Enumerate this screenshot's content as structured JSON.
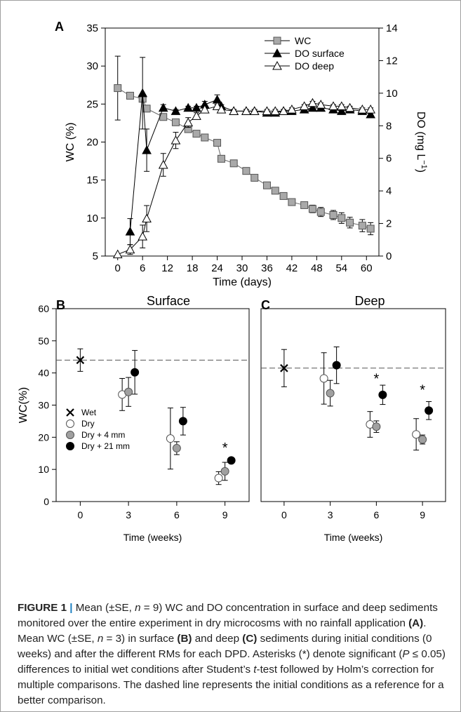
{
  "chart_data": [
    {
      "id": "A",
      "type": "line",
      "panel_label": "A",
      "xlabel": "Time (days)",
      "ylabel": "WC (%)",
      "y2label": "DO (mg L-1)",
      "xlim": [
        -3,
        63
      ],
      "ylim": [
        5,
        35
      ],
      "y2lim": [
        0,
        14
      ],
      "xticks": [
        0,
        6,
        12,
        18,
        24,
        30,
        36,
        42,
        48,
        54,
        60
      ],
      "yticks": [
        5,
        10,
        15,
        20,
        25,
        30,
        35
      ],
      "y2ticks": [
        0,
        2,
        4,
        6,
        8,
        10,
        12,
        14
      ],
      "legend_position": "top-right",
      "series": [
        {
          "name": "WC",
          "axis": "left",
          "marker": "square",
          "color": "#a9a9a9",
          "x": [
            0,
            3,
            6,
            7,
            11,
            14,
            17,
            19,
            21,
            24,
            25,
            28,
            31,
            33,
            36,
            38,
            40,
            42,
            45,
            47,
            49,
            52,
            54,
            56,
            59,
            61
          ],
          "y": [
            27.1,
            26.1,
            25.7,
            24.4,
            23.3,
            22.6,
            21.7,
            21.1,
            20.6,
            19.9,
            17.8,
            17.2,
            16.2,
            15.3,
            14.3,
            13.6,
            12.9,
            12.1,
            11.7,
            11.2,
            10.8,
            10.4,
            10.0,
            9.4,
            9.0,
            8.6
          ],
          "err": [
            4.2,
            0,
            0,
            0,
            0,
            0,
            0,
            0,
            0,
            0,
            0,
            0,
            0,
            0,
            0,
            0,
            0,
            0,
            0.4,
            0.5,
            0.6,
            0.6,
            0.7,
            0.7,
            0.8,
            0.8
          ]
        },
        {
          "name": "DO surface",
          "axis": "right",
          "marker": "triangle-filled",
          "color": "#000000",
          "x": [
            3,
            6,
            7,
            11,
            14,
            17,
            19,
            21,
            24,
            25,
            28,
            31,
            33,
            36,
            38,
            40,
            42,
            45,
            47,
            49,
            52,
            54,
            56,
            59,
            61
          ],
          "y": [
            1.5,
            10.0,
            6.5,
            9.1,
            8.9,
            9.1,
            9.1,
            9.3,
            9.6,
            9.2,
            8.9,
            8.9,
            8.9,
            8.8,
            8.8,
            8.9,
            8.9,
            9.0,
            9.1,
            9.1,
            9.0,
            8.9,
            9.0,
            8.9,
            8.7
          ],
          "err": [
            0.8,
            2.2,
            1.3,
            0.2,
            0.1,
            0.1,
            0.1,
            0.2,
            0.3,
            0.1,
            0.1,
            0.1,
            0.1,
            0.1,
            0.1,
            0.1,
            0.1,
            0.1,
            0.1,
            0.1,
            0.1,
            0.1,
            0.1,
            0.1,
            0.2
          ]
        },
        {
          "name": "DO deep",
          "axis": "right",
          "marker": "triangle-open",
          "color": "#ffffff",
          "x": [
            0,
            3,
            6,
            7,
            11,
            14,
            17,
            19,
            21,
            24,
            25,
            28,
            31,
            33,
            36,
            38,
            40,
            42,
            45,
            47,
            49,
            52,
            54,
            56,
            59,
            61
          ],
          "y": [
            0.1,
            0.4,
            1.2,
            2.3,
            5.6,
            7.1,
            8.2,
            8.6,
            9.0,
            9.2,
            9.0,
            8.9,
            8.9,
            8.9,
            8.9,
            8.9,
            8.9,
            9.0,
            9.2,
            9.4,
            9.3,
            9.2,
            9.2,
            9.1,
            9.0,
            9.0
          ],
          "err": [
            0,
            0.3,
            0.7,
            0.8,
            0.7,
            0.5,
            0.3,
            0.2,
            0.2,
            0.1,
            0.1,
            0.1,
            0.1,
            0.1,
            0.1,
            0.1,
            0.1,
            0.1,
            0.1,
            0.1,
            0.1,
            0.1,
            0.1,
            0.1,
            0.1,
            0.1
          ]
        }
      ]
    },
    {
      "id": "B",
      "type": "scatter",
      "panel_label": "B",
      "title": "Surface",
      "xlabel": "Time (weeks)",
      "ylabel": "WC(%)",
      "categories": [
        "0",
        "3",
        "6",
        "9"
      ],
      "ylim": [
        0,
        60
      ],
      "yticks": [
        0,
        10,
        20,
        30,
        40,
        50,
        60
      ],
      "reference_line": 44,
      "legend_position": "bottom-left",
      "legend": [
        "Wet",
        "Dry",
        "Dry + 4 mm",
        "Dry + 21 mm"
      ],
      "series": [
        {
          "name": "Wet",
          "marker": "x",
          "points": [
            {
              "cat": 0,
              "offset": 0,
              "y": 44.0,
              "err": 3.5
            }
          ]
        },
        {
          "name": "Dry",
          "marker": "circle-open",
          "points": [
            {
              "cat": 1,
              "offset": -1,
              "y": 33.3,
              "err": 5.0
            },
            {
              "cat": 2,
              "offset": -1,
              "y": 19.6,
              "err": 9.5
            },
            {
              "cat": 3,
              "offset": -1,
              "y": 7.3,
              "err": 2.0
            }
          ]
        },
        {
          "name": "Dry + 4 mm",
          "marker": "circle-gray",
          "points": [
            {
              "cat": 1,
              "offset": 0,
              "y": 34.1,
              "err": 4.5
            },
            {
              "cat": 2,
              "offset": 0,
              "y": 16.6,
              "err": 2.0
            },
            {
              "cat": 3,
              "offset": 0,
              "y": 9.4,
              "err": 2.8
            }
          ]
        },
        {
          "name": "Dry + 21 mm",
          "marker": "circle-black",
          "points": [
            {
              "cat": 1,
              "offset": 1,
              "y": 40.2,
              "err": 6.8
            },
            {
              "cat": 2,
              "offset": 1,
              "y": 25.0,
              "err": 4.3
            },
            {
              "cat": 3,
              "offset": 1,
              "y": 12.8,
              "err": 0.6
            }
          ]
        }
      ],
      "annotations": [
        {
          "text": "*",
          "cat": 3,
          "offset": 0,
          "y": 17.0
        }
      ]
    },
    {
      "id": "C",
      "type": "scatter",
      "panel_label": "C",
      "title": "Deep",
      "xlabel": "Time (weeks)",
      "categories": [
        "0",
        "3",
        "6",
        "9"
      ],
      "ylim": [
        0,
        60
      ],
      "reference_line": 41.5,
      "series": [
        {
          "name": "Wet",
          "marker": "x",
          "points": [
            {
              "cat": 0,
              "offset": 0,
              "y": 41.5,
              "err": 5.8
            }
          ]
        },
        {
          "name": "Dry",
          "marker": "circle-open",
          "points": [
            {
              "cat": 1,
              "offset": -1,
              "y": 38.3,
              "err": 8.0
            },
            {
              "cat": 2,
              "offset": -1,
              "y": 24.0,
              "err": 4.0
            },
            {
              "cat": 3,
              "offset": -1,
              "y": 20.9,
              "err": 4.9
            }
          ]
        },
        {
          "name": "Dry + 4 mm",
          "marker": "circle-gray",
          "points": [
            {
              "cat": 1,
              "offset": 0,
              "y": 33.7,
              "err": 4.0
            },
            {
              "cat": 2,
              "offset": 0,
              "y": 23.3,
              "err": 1.8
            },
            {
              "cat": 3,
              "offset": 0,
              "y": 19.3,
              "err": 1.4
            }
          ]
        },
        {
          "name": "Dry + 21 mm",
          "marker": "circle-black",
          "points": [
            {
              "cat": 1,
              "offset": 1,
              "y": 42.4,
              "err": 5.7
            },
            {
              "cat": 2,
              "offset": 1,
              "y": 33.2,
              "err": 3.0
            },
            {
              "cat": 3,
              "offset": 1,
              "y": 28.3,
              "err": 2.8
            }
          ]
        }
      ],
      "annotations": [
        {
          "text": "*",
          "cat": 2,
          "offset": 0,
          "y": 38.5
        },
        {
          "text": "*",
          "cat": 3,
          "offset": 0,
          "y": 35.0
        }
      ]
    }
  ],
  "caption": {
    "label": "FIGURE 1",
    "separator": "|",
    "p1": " Mean (±SE, ",
    "n1": "n",
    "p2": " = 9) WC and DO concentration in surface and deep sediments monitored over the entire experiment in dry microcosms with no rainfall application ",
    "refA": "(A)",
    "p3": ". Mean WC (±SE, ",
    "n2": "n",
    "p4": " = 3) in surface ",
    "refB": "(B)",
    "p5": " and deep ",
    "refC": "(C)",
    "p6": " sediments during initial conditions (0 weeks) and after the different RMs for each DPD. Asterisks (*) denote significant (",
    "pvar": "P",
    "p7": " ≤ 0.05) differences to initial wet conditions after Student’s ",
    "tvar": "t",
    "p8": "-test followed by Holm’s correction for multiple comparisons. The dashed line represents the initial conditions as a reference for a better comparison."
  }
}
